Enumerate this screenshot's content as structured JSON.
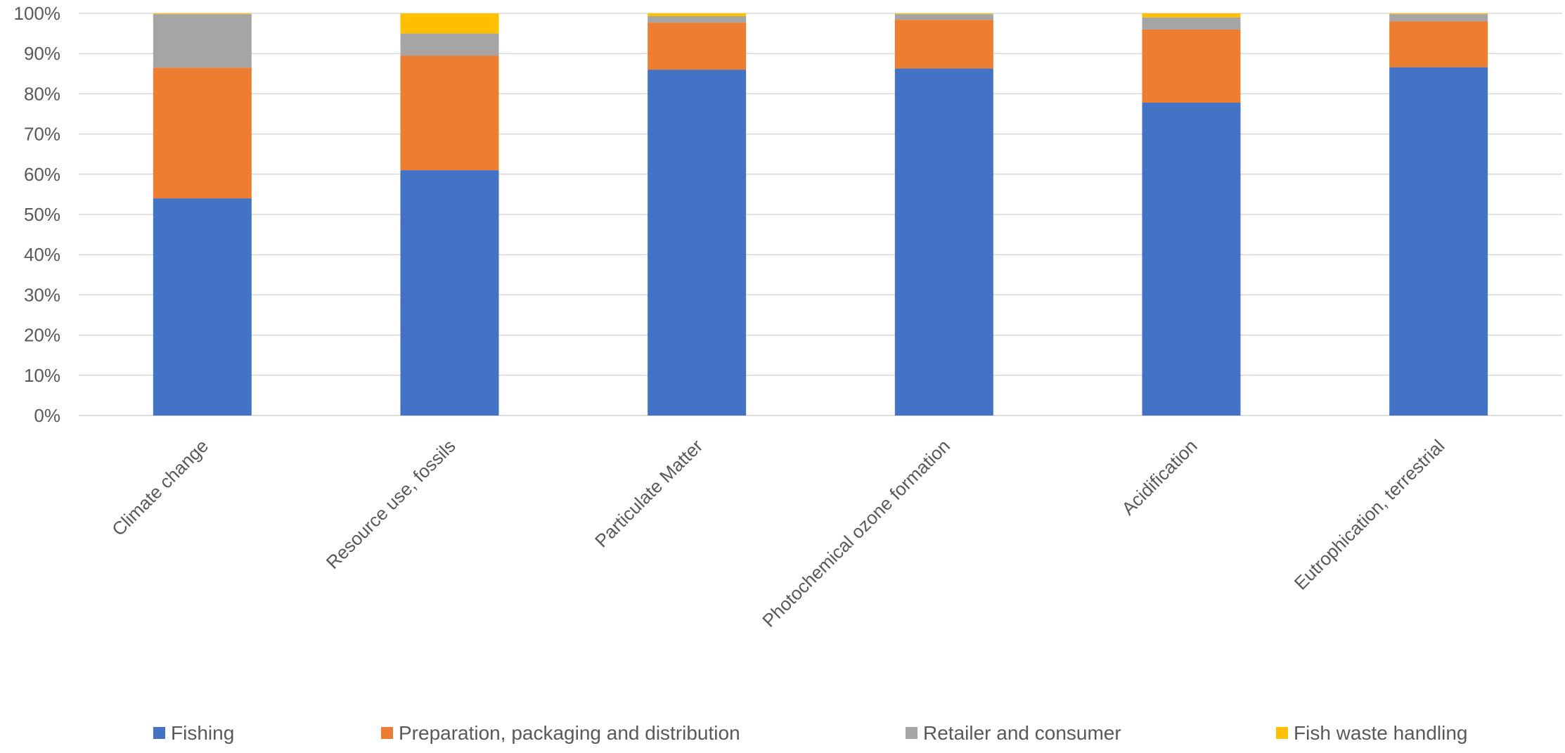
{
  "chart_data": {
    "type": "bar",
    "stacked": "percent",
    "categories": [
      "Climate change",
      "Resource use, fossils",
      "Particulate Matter",
      "Photochemical ozone formation",
      "Acidification",
      "Eutrophication, terrestrial"
    ],
    "series": [
      {
        "name": "Fishing",
        "color": "#4472C4",
        "values": [
          54,
          61,
          86,
          86.3,
          77.8,
          86.6
        ]
      },
      {
        "name": "Preparation, packaging and distribution",
        "color": "#ED7D31",
        "values": [
          32.5,
          28.5,
          11.7,
          12.1,
          18.2,
          11.4
        ]
      },
      {
        "name": "Retailer and consumer",
        "color": "#A5A5A5",
        "values": [
          13.3,
          5.5,
          1.6,
          1.4,
          3,
          1.8
        ]
      },
      {
        "name": "Fish waste handling",
        "color": "#FFC000",
        "values": [
          0.2,
          5,
          0.7,
          0.2,
          1,
          0.2
        ]
      }
    ],
    "yticks": [
      "0%",
      "10%",
      "20%",
      "30%",
      "40%",
      "50%",
      "60%",
      "70%",
      "80%",
      "90%",
      "100%"
    ],
    "ylim": [
      0,
      100
    ],
    "grid": true,
    "legend_position": "bottom",
    "title": "",
    "xlabel": "",
    "ylabel": ""
  }
}
